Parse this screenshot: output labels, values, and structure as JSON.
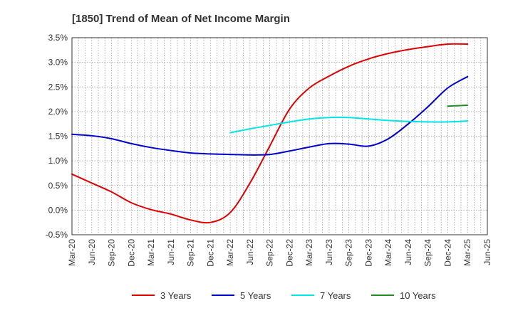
{
  "chart_data": {
    "type": "line",
    "title": "[1850]  Trend of Mean of Net Income Margin",
    "xlabel": "",
    "ylabel": "",
    "ylim": [
      -0.5,
      3.5
    ],
    "y_ticks": [
      3.5,
      3.0,
      2.5,
      2.0,
      1.5,
      1.0,
      0.5,
      0.0,
      -0.5
    ],
    "y_tick_labels": [
      "3.5%",
      "3.0%",
      "2.5%",
      "2.0%",
      "1.5%",
      "1.0%",
      "0.5%",
      "0.0%",
      "-0.5%"
    ],
    "x_tick_labels": [
      "Mar-20",
      "Jun-20",
      "Sep-20",
      "Dec-20",
      "Mar-21",
      "Jun-21",
      "Sep-21",
      "Dec-21",
      "Mar-22",
      "Jun-22",
      "Sep-22",
      "Dec-22",
      "Mar-23",
      "Jun-23",
      "Sep-23",
      "Dec-23",
      "Mar-24",
      "Jun-24",
      "Sep-24",
      "Dec-24",
      "Mar-25",
      "Jun-25"
    ],
    "grid": true,
    "legend_position": "bottom",
    "series": [
      {
        "name": "3 Years",
        "color": "#e00000",
        "points": [
          [
            "Mar-20",
            0.73
          ],
          [
            "Jun-20",
            0.55
          ],
          [
            "Sep-20",
            0.37
          ],
          [
            "Dec-20",
            0.15
          ],
          [
            "Mar-21",
            0.01
          ],
          [
            "Jun-21",
            -0.08
          ],
          [
            "Sep-21",
            -0.2
          ],
          [
            "Dec-21",
            -0.25
          ],
          [
            "Mar-22",
            -0.05
          ],
          [
            "Jun-22",
            0.55
          ],
          [
            "Sep-22",
            1.3
          ],
          [
            "Dec-22",
            2.05
          ],
          [
            "Mar-23",
            2.48
          ],
          [
            "Jun-23",
            2.72
          ],
          [
            "Sep-23",
            2.92
          ],
          [
            "Dec-23",
            3.07
          ],
          [
            "Mar-24",
            3.18
          ],
          [
            "Jun-24",
            3.26
          ],
          [
            "Sep-24",
            3.32
          ],
          [
            "Dec-24",
            3.37
          ],
          [
            "Mar-25",
            3.37
          ]
        ]
      },
      {
        "name": "5 Years",
        "color": "#0000cc",
        "points": [
          [
            "Mar-20",
            1.54
          ],
          [
            "Jun-20",
            1.51
          ],
          [
            "Sep-20",
            1.45
          ],
          [
            "Dec-20",
            1.35
          ],
          [
            "Mar-21",
            1.27
          ],
          [
            "Jun-21",
            1.21
          ],
          [
            "Sep-21",
            1.16
          ],
          [
            "Dec-21",
            1.14
          ],
          [
            "Mar-22",
            1.13
          ],
          [
            "Jun-22",
            1.12
          ],
          [
            "Sep-22",
            1.13
          ],
          [
            "Dec-22",
            1.2
          ],
          [
            "Mar-23",
            1.28
          ],
          [
            "Jun-23",
            1.35
          ],
          [
            "Sep-23",
            1.34
          ],
          [
            "Dec-23",
            1.3
          ],
          [
            "Mar-24",
            1.45
          ],
          [
            "Jun-24",
            1.75
          ],
          [
            "Sep-24",
            2.1
          ],
          [
            "Dec-24",
            2.48
          ],
          [
            "Mar-25",
            2.71
          ]
        ]
      },
      {
        "name": "7 Years",
        "color": "#00e5e5",
        "points": [
          [
            "Mar-22",
            1.57
          ],
          [
            "Jun-22",
            1.65
          ],
          [
            "Sep-22",
            1.72
          ],
          [
            "Dec-22",
            1.79
          ],
          [
            "Mar-23",
            1.85
          ],
          [
            "Jun-23",
            1.88
          ],
          [
            "Sep-23",
            1.88
          ],
          [
            "Dec-23",
            1.85
          ],
          [
            "Mar-24",
            1.82
          ],
          [
            "Jun-24",
            1.8
          ],
          [
            "Sep-24",
            1.79
          ],
          [
            "Dec-24",
            1.79
          ],
          [
            "Mar-25",
            1.81
          ]
        ]
      },
      {
        "name": "10 Years",
        "color": "#228b22",
        "points": [
          [
            "Dec-24",
            2.11
          ],
          [
            "Mar-25",
            2.13
          ]
        ]
      }
    ]
  }
}
